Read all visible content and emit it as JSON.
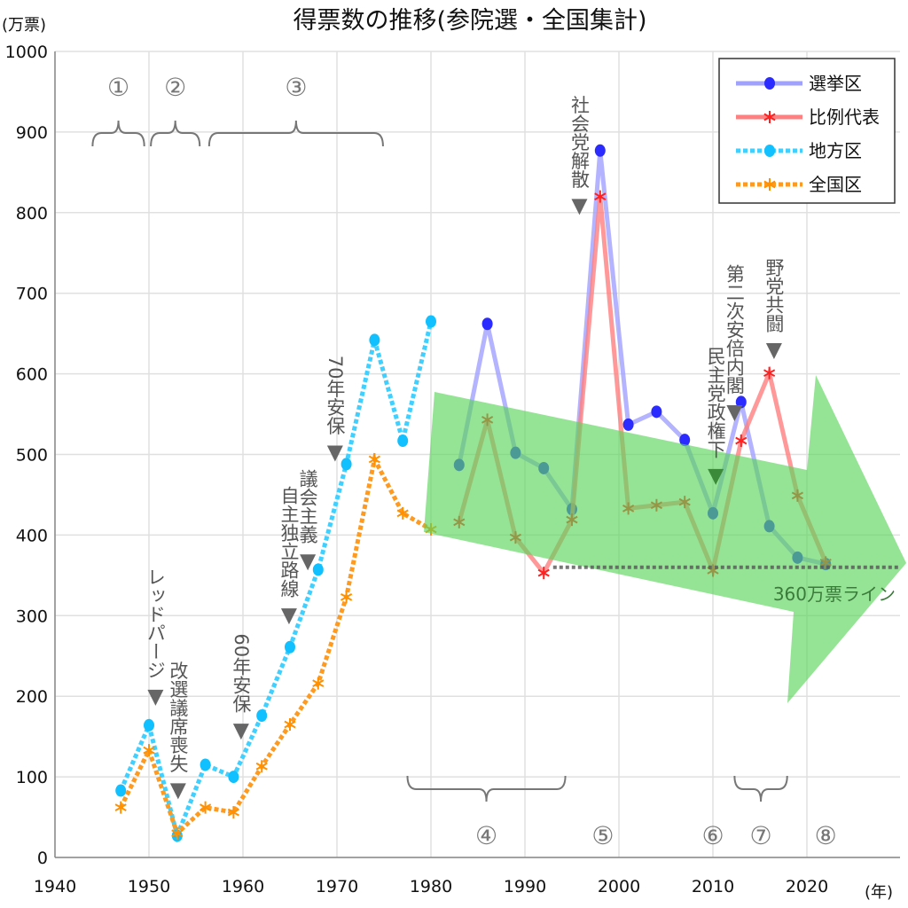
{
  "chart_data": {
    "type": "line",
    "title": "得票数の推移(参院選・全国集計)",
    "ylabel": "(万票)",
    "xlabel": "(年)",
    "xlim": [
      1940,
      2025
    ],
    "ylim": [
      0,
      1000
    ],
    "xticks": [
      1940,
      1950,
      1960,
      1970,
      1980,
      1990,
      2000,
      2010,
      2020
    ],
    "yticks": [
      0,
      100,
      200,
      300,
      400,
      500,
      600,
      700,
      800,
      900,
      1000
    ],
    "grid": true,
    "legend_position": "top-right",
    "series": [
      {
        "name": "選挙区",
        "color": "#2b2bff",
        "line_color": "#a0a0ff",
        "marker": "circle",
        "style": "solid",
        "x": [
          1983,
          1986,
          1989,
          1992,
          1995,
          1998,
          2001,
          2004,
          2007,
          2010,
          2013,
          2016,
          2019,
          2022
        ],
        "y": [
          487,
          662,
          502,
          483,
          432,
          877,
          537,
          553,
          518,
          427,
          565,
          411,
          372,
          364
        ]
      },
      {
        "name": "比例代表",
        "color": "#ff2020",
        "line_color": "#ff8080",
        "marker": "star",
        "style": "solid",
        "x": [
          1983,
          1986,
          1989,
          1992,
          1995,
          1998,
          2001,
          2004,
          2007,
          2010,
          2013,
          2016,
          2019,
          2022
        ],
        "y": [
          416,
          543,
          397,
          353,
          419,
          820,
          433,
          437,
          441,
          356,
          517,
          601,
          449,
          366
        ]
      },
      {
        "name": "地方区",
        "color": "#10c0ff",
        "line_color": "#40d0ff",
        "marker": "circle",
        "style": "dotted",
        "x": [
          1947,
          1950,
          1953,
          1956,
          1959,
          1962,
          1965,
          1968,
          1971,
          1974,
          1977,
          1980
        ],
        "y": [
          83,
          164,
          27,
          115,
          100,
          176,
          261,
          357,
          488,
          642,
          517,
          665
        ]
      },
      {
        "name": "全国区",
        "color": "#ff9000",
        "line_color": "#ff9a20",
        "marker": "star",
        "style": "dotted",
        "x": [
          1947,
          1950,
          1953,
          1956,
          1959,
          1962,
          1965,
          1968,
          1971,
          1974,
          1977,
          1980
        ],
        "y": [
          62,
          133,
          30,
          62,
          56,
          113,
          165,
          216,
          323,
          494,
          427,
          407
        ]
      }
    ],
    "reference_line": {
      "value": 360,
      "from_year": 1993,
      "label": "360万票ライン"
    },
    "annotations": [
      {
        "text": "レッドパージ",
        "year": 1950.7,
        "value": 197
      },
      {
        "text": "改選議席喪失",
        "year": 1953.1,
        "value": 81
      },
      {
        "text": "60年安保",
        "year": 1959.8,
        "value": 155
      },
      {
        "text": "自主独立路線",
        "year": 1964.9,
        "value": 298
      },
      {
        "text": "議会主義",
        "year": 1966.9,
        "value": 365
      },
      {
        "text": "70年安保",
        "year": 1969.8,
        "value": 500
      },
      {
        "text": "社会党解散",
        "year": 1995.8,
        "value": 806
      },
      {
        "text": "民主党政権下",
        "year": 2010.3,
        "value": 471
      },
      {
        "text": "第二次安倍内閣",
        "year": 2012.3,
        "value": 550
      },
      {
        "text": "野党共闘",
        "year": 2016.5,
        "value": 627
      }
    ],
    "periods": [
      {
        "label": "①",
        "from": 1944,
        "to": 1949.5,
        "position": "top"
      },
      {
        "label": "②",
        "from": 1950.2,
        "to": 1955.4,
        "position": "top"
      },
      {
        "label": "③",
        "from": 1956.4,
        "to": 1974.9,
        "position": "top"
      },
      {
        "label": "④",
        "from": 1977.5,
        "to": 1994.3,
        "position": "bottom"
      },
      {
        "label": "⑤",
        "from": 1998.3,
        "to": 1998.3,
        "position": "bottom"
      },
      {
        "label": "⑥",
        "from": 2010,
        "to": 2010,
        "position": "bottom"
      },
      {
        "label": "⑦",
        "from": 2012.3,
        "to": 2017.9,
        "position": "bottom"
      },
      {
        "label": "⑧",
        "from": 2022,
        "to": 2022,
        "position": "bottom"
      }
    ],
    "trend_arrow_color": "#5cd65c"
  }
}
